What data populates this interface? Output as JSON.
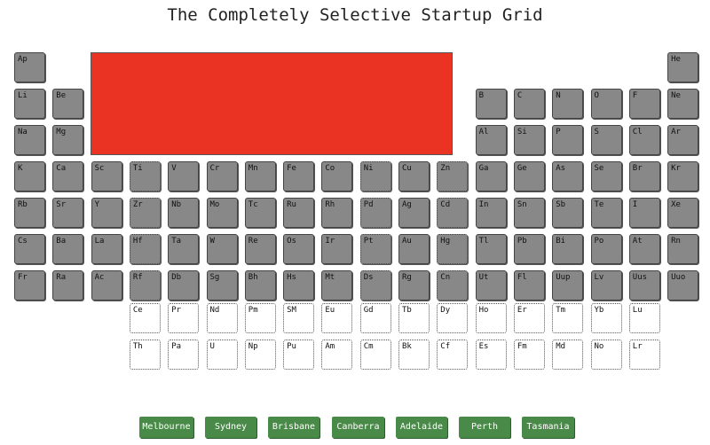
{
  "title": "The Completely Selective Startup Grid",
  "colors": {
    "tile": "#888888",
    "feature": "#ea3323",
    "city_button": "#4a8a48"
  },
  "rows": [
    [
      "Ap",
      "",
      "",
      "",
      "",
      "",
      "",
      "",
      "",
      "",
      "",
      "",
      "",
      "",
      "",
      "",
      "",
      "He"
    ],
    [
      "Li",
      "Be",
      "",
      "",
      "",
      "",
      "",
      "",
      "",
      "",
      "",
      "",
      "B",
      "C",
      "N",
      "O",
      "F",
      "Ne"
    ],
    [
      "Na",
      "Mg",
      "",
      "",
      "",
      "",
      "",
      "",
      "",
      "",
      "",
      "",
      "Al",
      "Si",
      "P",
      "S",
      "Cl",
      "Ar"
    ],
    [
      "K",
      "Ca",
      "Sc",
      "Ti",
      "V",
      "Cr",
      "Mn",
      "Fe",
      "Co",
      "Ni",
      "Cu",
      "Zn",
      "Ga",
      "Ge",
      "As",
      "Se",
      "Br",
      "Kr"
    ],
    [
      "Rb",
      "Sr",
      "Y",
      "Zr",
      "Nb",
      "Mo",
      "Tc",
      "Ru",
      "Rh",
      "Pd",
      "Ag",
      "Cd",
      "In",
      "Sn",
      "Sb",
      "Te",
      "I",
      "Xe"
    ],
    [
      "Cs",
      "Ba",
      "La",
      "Hf",
      "Ta",
      "W",
      "Re",
      "Os",
      "Ir",
      "Pt",
      "Au",
      "Hg",
      "Tl",
      "Pb",
      "Bi",
      "Po",
      "At",
      "Rn"
    ],
    [
      "Fr",
      "Ra",
      "Ac",
      "Rf",
      "Db",
      "Sg",
      "Bh",
      "Hs",
      "Mt",
      "Ds",
      "Rg",
      "Cn",
      "Ut",
      "Fl",
      "Uup",
      "Lv",
      "Uus",
      "Uuo"
    ]
  ],
  "lower_rows": [
    [
      "Ce",
      "Pr",
      "Nd",
      "Pm",
      "SM",
      "Eu",
      "Gd",
      "Tb",
      "Dy",
      "Ho",
      "Er",
      "Tm",
      "Yb",
      "Lu"
    ],
    [
      "Th",
      "Pa",
      "U",
      "Np",
      "Pu",
      "Am",
      "Cm",
      "Bk",
      "Cf",
      "Es",
      "Fm",
      "Md",
      "No",
      "Lr"
    ]
  ],
  "cities": [
    "Melbourne",
    "Sydney",
    "Brisbane",
    "Canberra",
    "Adelaide",
    "Perth",
    "Tasmania"
  ]
}
